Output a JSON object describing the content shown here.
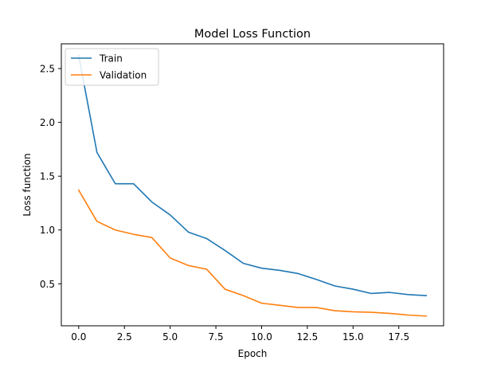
{
  "chart_data": {
    "type": "line",
    "title": "Model Loss Function",
    "xlabel": "Epoch",
    "ylabel": "Loss function",
    "x": [
      0,
      1,
      2,
      3,
      4,
      5,
      6,
      7,
      8,
      9,
      10,
      11,
      12,
      13,
      14,
      15,
      16,
      17,
      18,
      19
    ],
    "xlim": [
      -0.95,
      19.95
    ],
    "ylim": [
      0.11,
      2.73
    ],
    "xticks": [
      0,
      2.5,
      5,
      7.5,
      10,
      12.5,
      15,
      17.5
    ],
    "xtick_labels": [
      "0.0",
      "2.5",
      "5.0",
      "7.5",
      "10.0",
      "12.5",
      "15.0",
      "17.5"
    ],
    "yticks": [
      0.5,
      1.0,
      1.5,
      2.0,
      2.5
    ],
    "ytick_labels": [
      "0.5",
      "1.0",
      "1.5",
      "2.0",
      "2.5"
    ],
    "grid": false,
    "legend_position": "top-left",
    "series": [
      {
        "name": "Train",
        "color": "#1f77b4",
        "values": [
          2.62,
          1.72,
          1.43,
          1.43,
          1.26,
          1.14,
          0.98,
          0.92,
          0.81,
          0.69,
          0.645,
          0.625,
          0.595,
          0.54,
          0.48,
          0.45,
          0.41,
          0.42,
          0.4,
          0.39
        ]
      },
      {
        "name": "Validation",
        "color": "#ff7f0e",
        "values": [
          1.37,
          1.08,
          1.0,
          0.96,
          0.93,
          0.74,
          0.67,
          0.635,
          0.45,
          0.39,
          0.32,
          0.3,
          0.28,
          0.28,
          0.25,
          0.24,
          0.235,
          0.225,
          0.21,
          0.2
        ]
      }
    ]
  }
}
